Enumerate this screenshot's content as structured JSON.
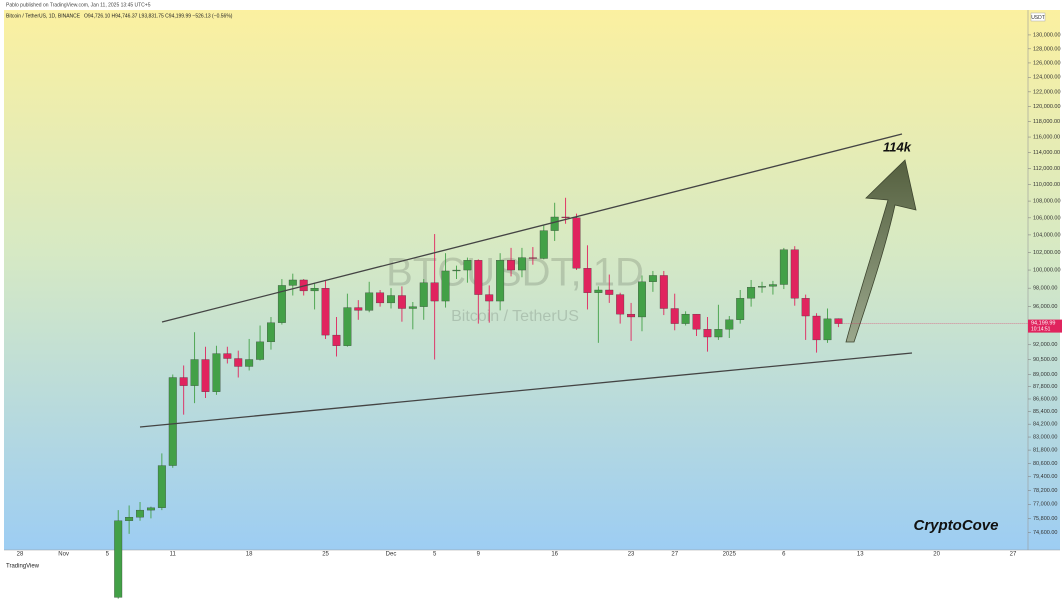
{
  "chart_data": {
    "type": "candlestick",
    "publisher_line": "Pablo published on TradingView.com, Jan 11, 2025 13:45 UTC+5",
    "symbol_line": "Bitcoin / TetherUS, 1D, BINANCE",
    "ohlc_line": "O94,726.10 H94,746.37 L93,831.75 C94,199.99 −526.13 (−0.56%)",
    "watermark": "BTCUSDT, 1D",
    "watermark_sub": "Bitcoin / TetherUS",
    "annotations": [
      "114k",
      "CryptoCove"
    ],
    "currency": "USDT",
    "price_tag": "94,199.99",
    "countdown": "10:14:51",
    "brand": "TradingView",
    "log_scale": true,
    "up_color": "#43a047",
    "down_color": "#e0245e",
    "ylim": [
      73170,
      133370
    ],
    "yticks": [
      {
        "value": 130000,
        "label": "130,000.00"
      },
      {
        "value": 128000,
        "label": "128,000.00"
      },
      {
        "value": 126000,
        "label": "126,000.00"
      },
      {
        "value": 124000,
        "label": "124,000.00"
      },
      {
        "value": 122000,
        "label": "122,000.00"
      },
      {
        "value": 120000,
        "label": "120,000.00"
      },
      {
        "value": 118000,
        "label": "118,000.00"
      },
      {
        "value": 116000,
        "label": "116,000.00"
      },
      {
        "value": 114000,
        "label": "114,000.00"
      },
      {
        "value": 112000,
        "label": "112,000.00"
      },
      {
        "value": 110000,
        "label": "110,000.00"
      },
      {
        "value": 108000,
        "label": "108,000.00"
      },
      {
        "value": 106000,
        "label": "106,000.00"
      },
      {
        "value": 104000,
        "label": "104,000.00"
      },
      {
        "value": 102000,
        "label": "102,000.00"
      },
      {
        "value": 100000,
        "label": "100,000.00"
      },
      {
        "value": 98000,
        "label": "98,000.00"
      },
      {
        "value": 96000,
        "label": "96,000.00"
      },
      {
        "value": 92000,
        "label": "92,000.00"
      },
      {
        "value": 90500,
        "label": "90,500.00"
      },
      {
        "value": 89000,
        "label": "89,000.00"
      },
      {
        "value": 87800,
        "label": "87,800.00"
      },
      {
        "value": 86600,
        "label": "86,600.00"
      },
      {
        "value": 85400,
        "label": "85,400.00"
      },
      {
        "value": 84200,
        "label": "84,200.00"
      },
      {
        "value": 83000,
        "label": "83,000.00"
      },
      {
        "value": 81800,
        "label": "81,800.00"
      },
      {
        "value": 80600,
        "label": "80,600.00"
      },
      {
        "value": 79400,
        "label": "79,400.00"
      },
      {
        "value": 78200,
        "label": "78,200.00"
      },
      {
        "value": 77000,
        "label": "77,000.00"
      },
      {
        "value": 75800,
        "label": "75,800.00"
      },
      {
        "value": 74600,
        "label": "74,600.00"
      }
    ],
    "categories": [
      "28",
      null,
      null,
      null,
      "Nov",
      null,
      null,
      null,
      "5",
      null,
      null,
      null,
      null,
      null,
      "11",
      null,
      null,
      null,
      null,
      null,
      null,
      "18",
      null,
      null,
      null,
      null,
      null,
      null,
      "25",
      null,
      null,
      null,
      null,
      null,
      "Dec",
      null,
      null,
      null,
      "5",
      null,
      null,
      null,
      "9",
      null,
      null,
      null,
      null,
      null,
      null,
      "16",
      null,
      null,
      null,
      null,
      null,
      null,
      "23",
      null,
      null,
      null,
      "27",
      null,
      null,
      null,
      null,
      "2025",
      null,
      null,
      null,
      null,
      "6",
      null,
      null,
      null,
      null,
      null,
      null,
      "13",
      null,
      null,
      null,
      null,
      null,
      null,
      "20",
      null,
      null,
      null,
      null,
      null,
      null,
      "27"
    ],
    "open": [
      null,
      null,
      null,
      null,
      null,
      null,
      null,
      null,
      null,
      69400,
      75600,
      75900,
      76500,
      76700,
      80400,
      88700,
      87900,
      90500,
      87300,
      91100,
      90600,
      89800,
      90500,
      92300,
      94300,
      98300,
      98900,
      97700,
      98000,
      93000,
      91900,
      95900,
      95600,
      97500,
      96400,
      97200,
      95800,
      96000,
      98600,
      96600,
      99900,
      100000,
      101100,
      97300,
      96600,
      101100,
      100000,
      101400,
      101300,
      104500,
      106100,
      106000,
      100200,
      97500,
      97800,
      97300,
      95200,
      94900,
      98700,
      99400,
      95800,
      94200,
      95200,
      93600,
      92800,
      93600,
      94600,
      96900,
      98100,
      98200,
      98400,
      102300,
      96900,
      95000,
      92500,
      94726.1,
      null,
      null,
      null,
      null,
      null,
      null,
      null,
      null,
      null,
      null,
      null,
      null,
      null,
      null,
      null,
      null
    ],
    "high": [
      null,
      null,
      null,
      null,
      null,
      null,
      null,
      null,
      null,
      76500,
      76900,
      77200,
      76800,
      81500,
      89000,
      89900,
      93300,
      91800,
      91900,
      91800,
      91400,
      92600,
      94000,
      94900,
      99000,
      99600,
      99000,
      98600,
      98900,
      94900,
      97400,
      96700,
      98700,
      97800,
      98000,
      98200,
      96500,
      99000,
      104100,
      101900,
      100500,
      101400,
      101200,
      98300,
      101900,
      102500,
      102500,
      102600,
      105200,
      107800,
      108400,
      106500,
      102800,
      98200,
      99500,
      97500,
      96400,
      99400,
      99900,
      99900,
      97400,
      95500,
      95200,
      94900,
      96200,
      95000,
      97800,
      98900,
      98700,
      98800,
      102500,
      102700,
      97300,
      95300,
      95800,
      94746.37,
      null,
      null,
      null,
      null,
      null,
      null,
      null,
      null,
      null,
      null,
      null,
      null,
      null,
      null,
      null,
      null
    ],
    "low": [
      null,
      null,
      null,
      null,
      null,
      null,
      null,
      null,
      null,
      69300,
      74500,
      75600,
      75800,
      76500,
      80200,
      85100,
      86200,
      86700,
      87000,
      90100,
      88700,
      89400,
      90400,
      91500,
      94100,
      97200,
      97200,
      95700,
      92600,
      90800,
      91800,
      94600,
      95400,
      96000,
      95800,
      94400,
      93600,
      94600,
      90500,
      95900,
      99000,
      98600,
      94200,
      94300,
      95600,
      99300,
      99200,
      100600,
      101200,
      103300,
      105300,
      100000,
      95700,
      92200,
      96400,
      94200,
      92400,
      93400,
      97600,
      95100,
      93500,
      94000,
      92900,
      91300,
      92500,
      92700,
      94200,
      96000,
      97500,
      97300,
      97900,
      96100,
      92500,
      91200,
      92200,
      93831.75,
      null,
      null,
      null,
      null,
      null,
      null,
      null,
      null,
      null,
      null,
      null,
      null,
      null,
      null,
      null,
      null
    ],
    "close": [
      null,
      null,
      null,
      null,
      null,
      null,
      null,
      null,
      null,
      75600,
      75900,
      76500,
      76700,
      80400,
      88700,
      87900,
      90500,
      87300,
      91100,
      90600,
      89800,
      90500,
      92300,
      94300,
      98300,
      98900,
      97700,
      98000,
      93000,
      91900,
      95900,
      95600,
      97500,
      96400,
      97200,
      95800,
      96000,
      98600,
      96600,
      99900,
      100000,
      101100,
      97300,
      96600,
      101100,
      100000,
      101400,
      101300,
      104500,
      106100,
      106000,
      100200,
      97500,
      97800,
      97300,
      95200,
      94900,
      98700,
      99400,
      95800,
      94200,
      95200,
      93600,
      92800,
      93600,
      94600,
      96900,
      98100,
      98200,
      98400,
      102300,
      96900,
      95000,
      92500,
      94700,
      94199.99,
      null,
      null,
      null,
      null,
      null,
      null,
      null,
      null,
      null,
      null,
      null,
      null,
      null,
      null,
      null,
      null
    ]
  }
}
